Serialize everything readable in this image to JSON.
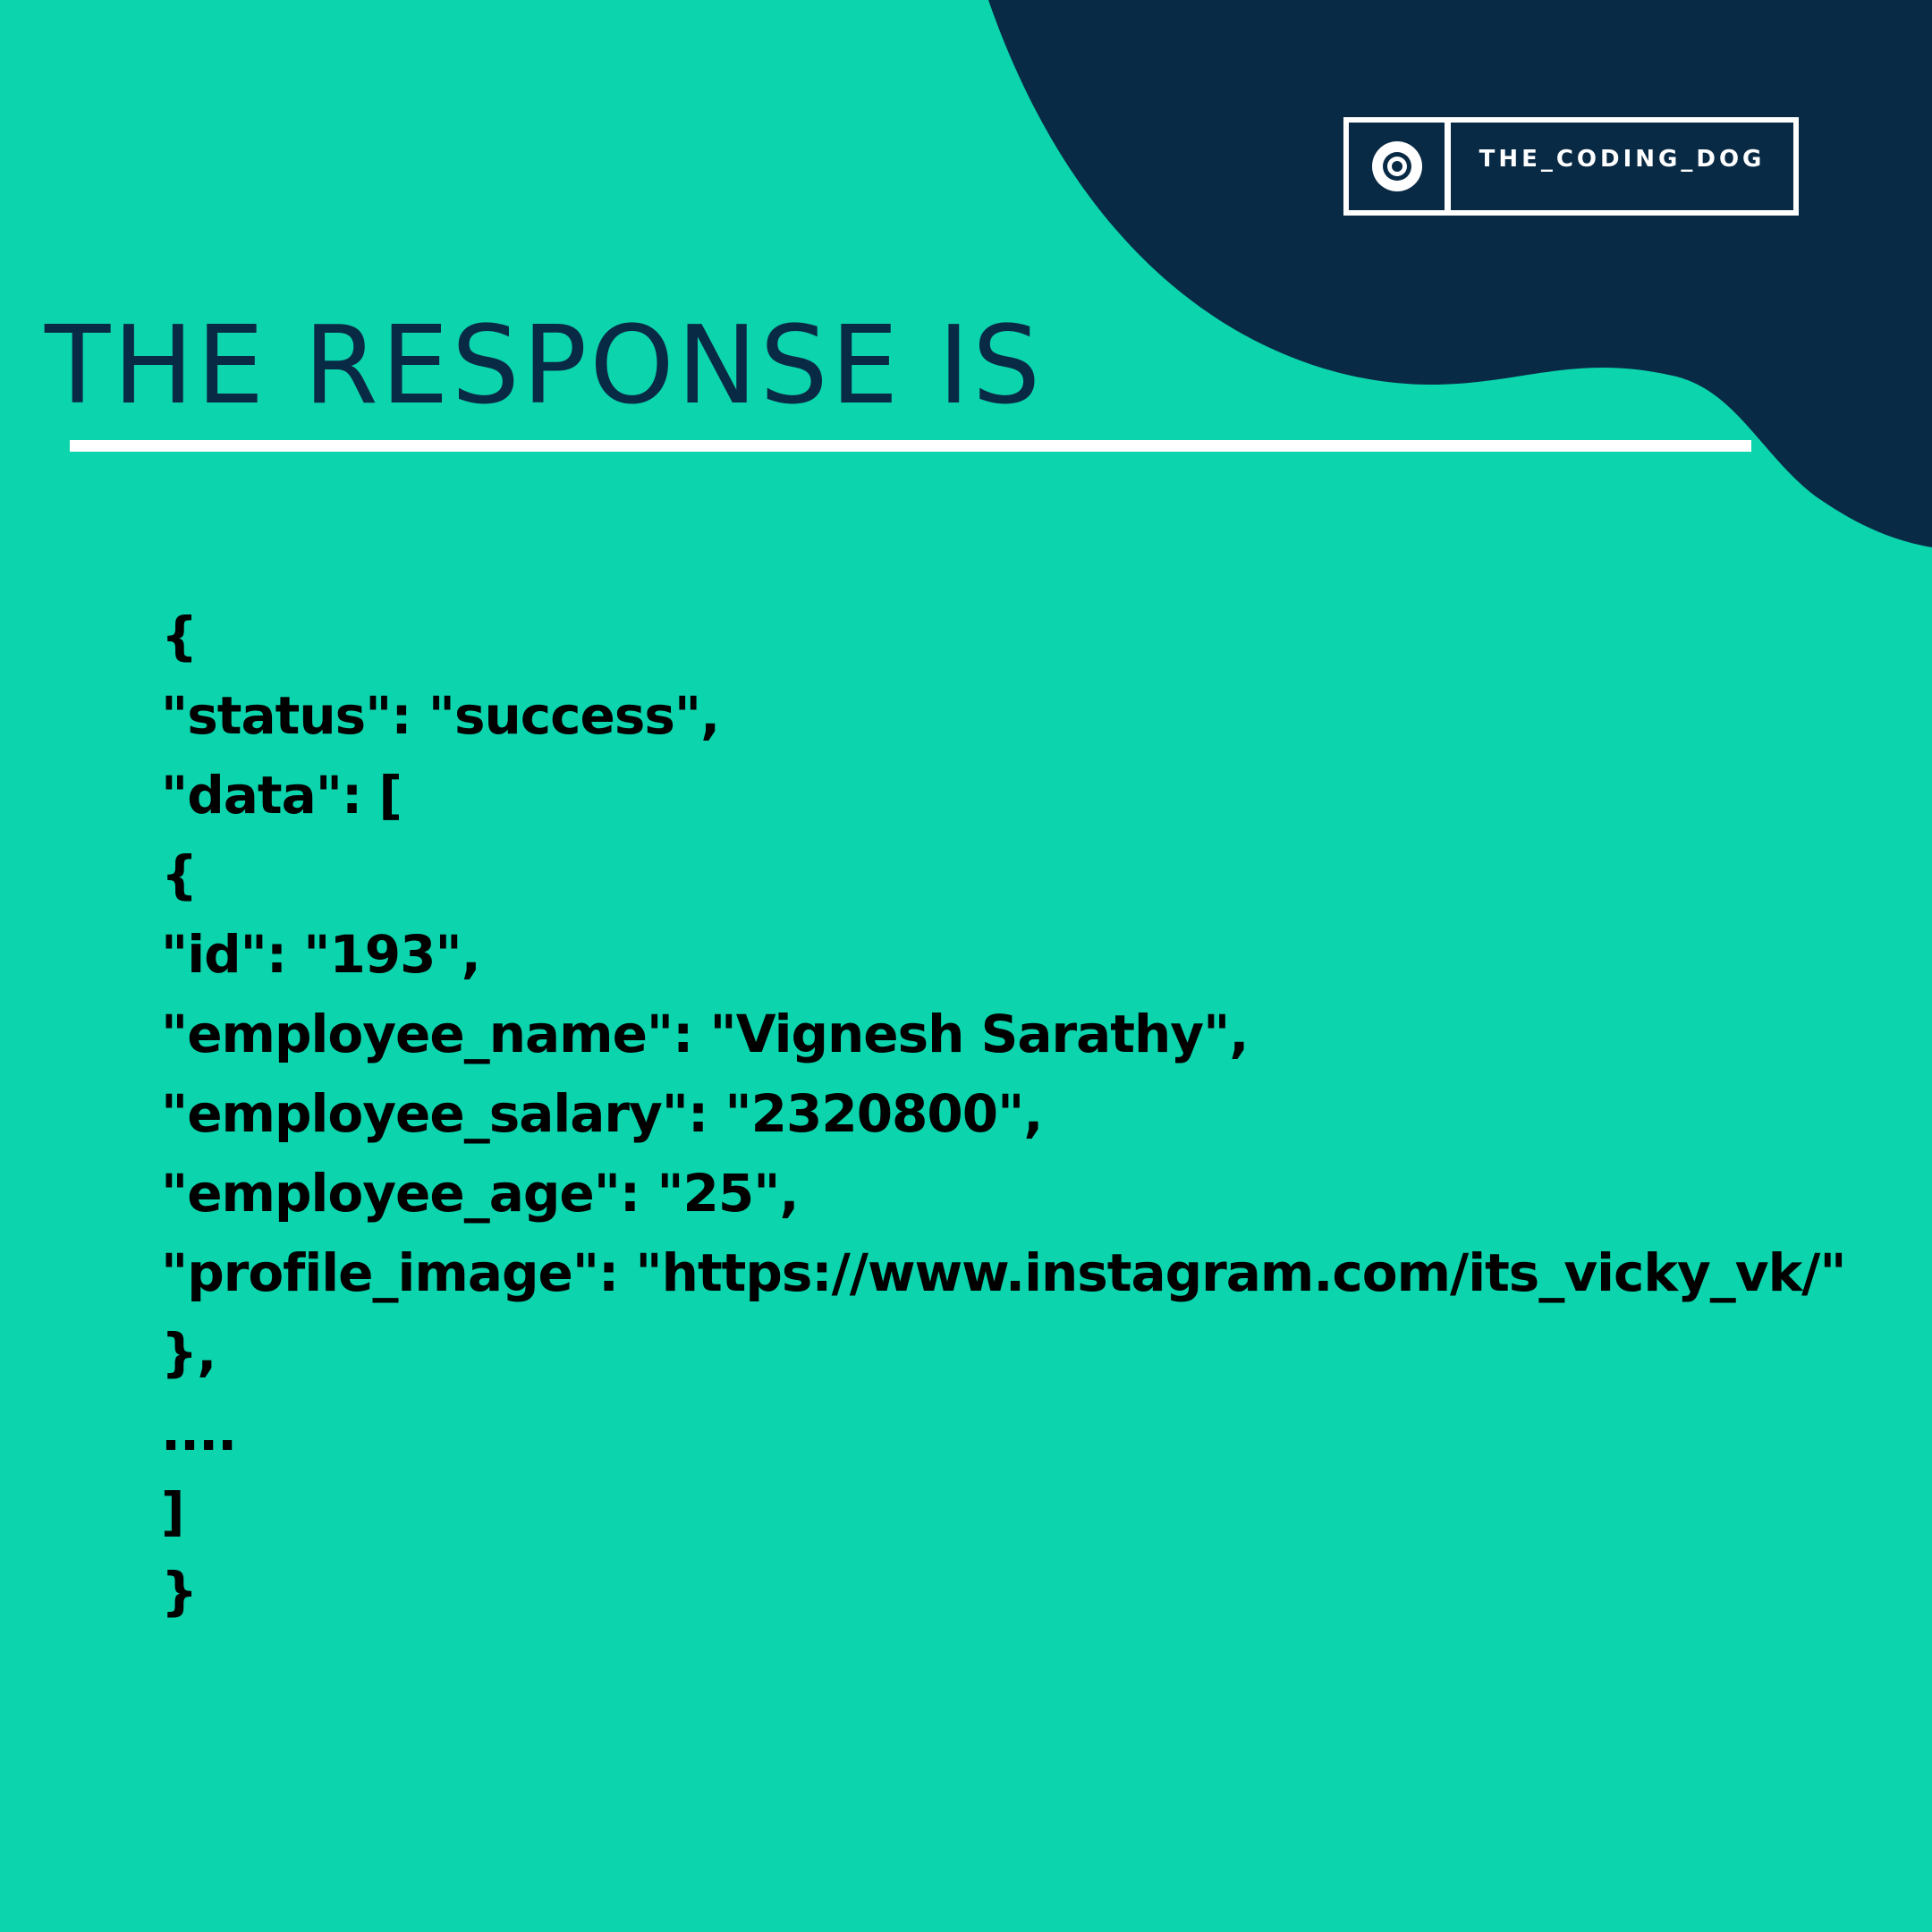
{
  "colors": {
    "background": "#0cd4ad",
    "blob": "#092a45",
    "title": "#092a45",
    "code_text": "#000000",
    "divider": "#ffffff"
  },
  "brand": {
    "icon": "target-icon",
    "label": "THE_CODING_DOG"
  },
  "title": "THE RESPONSE IS",
  "code_lines": [
    "{",
    "\"status\": \"success\",",
    "\"data\": [",
    "{",
    "\"id\": \"193\",",
    "\"employee_name\": \"Vignesh Sarathy\",",
    "\"employee_salary\": \"2320800\",",
    "\"employee_age\": \"25\",",
    "\"profile_image\": \"https://www.instagram.com/its_vicky_vk/\"",
    "},",
    "....",
    "]",
    "}"
  ]
}
